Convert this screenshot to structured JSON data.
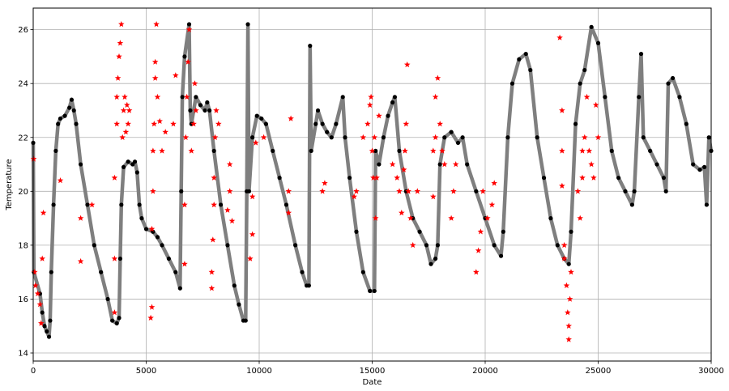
{
  "chart_data": {
    "type": "scatter",
    "xlabel": "Date",
    "ylabel": "Temperature",
    "xlim": [
      0,
      30000
    ],
    "ylim": [
      13.7,
      26.8
    ],
    "xticks": [
      0,
      5000,
      10000,
      15000,
      20000,
      25000,
      30000
    ],
    "yticks": [
      14,
      16,
      18,
      20,
      22,
      24,
      26
    ],
    "grid": true,
    "colors": {
      "line": "#7f7f7f",
      "markers": "#000000",
      "outliers": "#ff0000"
    },
    "series": [
      {
        "style": "line-with-dot-markers",
        "points": [
          [
            0,
            21.8
          ],
          [
            30,
            17.0
          ],
          [
            300,
            16.2
          ],
          [
            400,
            15.5
          ],
          [
            500,
            15.0
          ],
          [
            600,
            14.8
          ],
          [
            700,
            14.6
          ],
          [
            750,
            15.2
          ],
          [
            800,
            17.0
          ],
          [
            900,
            19.5
          ],
          [
            1000,
            21.5
          ],
          [
            1100,
            22.5
          ],
          [
            1200,
            22.7
          ],
          [
            1400,
            22.8
          ],
          [
            1600,
            23.1
          ],
          [
            1700,
            23.4
          ],
          [
            1800,
            23.0
          ],
          [
            1900,
            22.5
          ],
          [
            2100,
            21.0
          ],
          [
            2400,
            19.5
          ],
          [
            2700,
            18.0
          ],
          [
            3000,
            17.0
          ],
          [
            3300,
            16.0
          ],
          [
            3500,
            15.2
          ],
          [
            3700,
            15.1
          ],
          [
            3800,
            15.3
          ],
          [
            3850,
            17.5
          ],
          [
            3900,
            19.5
          ],
          [
            4000,
            20.9
          ],
          [
            4200,
            21.1
          ],
          [
            4400,
            21.0
          ],
          [
            4500,
            21.1
          ],
          [
            4600,
            20.7
          ],
          [
            4700,
            19.5
          ],
          [
            4800,
            19.0
          ],
          [
            5000,
            18.6
          ],
          [
            5300,
            18.5
          ],
          [
            5500,
            18.3
          ],
          [
            5700,
            18.0
          ],
          [
            6000,
            17.5
          ],
          [
            6300,
            17.0
          ],
          [
            6500,
            16.4
          ],
          [
            6550,
            20.0
          ],
          [
            6600,
            23.5
          ],
          [
            6700,
            25.0
          ],
          [
            6900,
            26.2
          ],
          [
            6950,
            23.0
          ],
          [
            7000,
            22.5
          ],
          [
            7200,
            23.5
          ],
          [
            7400,
            23.2
          ],
          [
            7600,
            23.0
          ],
          [
            7700,
            23.3
          ],
          [
            7800,
            23.0
          ],
          [
            8000,
            21.5
          ],
          [
            8300,
            19.5
          ],
          [
            8600,
            18.0
          ],
          [
            8900,
            16.5
          ],
          [
            9100,
            15.8
          ],
          [
            9300,
            15.2
          ],
          [
            9400,
            15.2
          ],
          [
            9450,
            20.0
          ],
          [
            9500,
            26.2
          ],
          [
            9550,
            20.0
          ],
          [
            9700,
            22.0
          ],
          [
            9900,
            22.8
          ],
          [
            10100,
            22.7
          ],
          [
            10300,
            22.5
          ],
          [
            10600,
            21.5
          ],
          [
            10900,
            20.5
          ],
          [
            11200,
            19.5
          ],
          [
            11600,
            18.0
          ],
          [
            11900,
            17.0
          ],
          [
            12100,
            16.5
          ],
          [
            12200,
            16.5
          ],
          [
            12250,
            25.4
          ],
          [
            12300,
            21.5
          ],
          [
            12500,
            22.5
          ],
          [
            12600,
            23.0
          ],
          [
            12800,
            22.5
          ],
          [
            13000,
            22.2
          ],
          [
            13200,
            22.0
          ],
          [
            13400,
            22.5
          ],
          [
            13700,
            23.5
          ],
          [
            13800,
            22.0
          ],
          [
            14000,
            20.5
          ],
          [
            14300,
            18.5
          ],
          [
            14600,
            17.0
          ],
          [
            14900,
            16.3
          ],
          [
            15100,
            16.3
          ],
          [
            15150,
            21.5
          ],
          [
            15300,
            21.0
          ],
          [
            15500,
            22.0
          ],
          [
            15700,
            22.8
          ],
          [
            15900,
            23.3
          ],
          [
            16000,
            23.5
          ],
          [
            16200,
            21.5
          ],
          [
            16500,
            20.0
          ],
          [
            16800,
            19.0
          ],
          [
            17100,
            18.5
          ],
          [
            17400,
            18.0
          ],
          [
            17600,
            17.3
          ],
          [
            17800,
            17.5
          ],
          [
            17900,
            18.0
          ],
          [
            18000,
            21.0
          ],
          [
            18200,
            22.0
          ],
          [
            18500,
            22.2
          ],
          [
            18800,
            21.8
          ],
          [
            19000,
            22.0
          ],
          [
            19200,
            21.0
          ],
          [
            19600,
            20.0
          ],
          [
            20000,
            19.0
          ],
          [
            20400,
            18.0
          ],
          [
            20700,
            17.6
          ],
          [
            20800,
            18.5
          ],
          [
            21000,
            22.0
          ],
          [
            21200,
            24.0
          ],
          [
            21500,
            24.9
          ],
          [
            21800,
            25.1
          ],
          [
            22000,
            24.5
          ],
          [
            22300,
            22.0
          ],
          [
            22600,
            20.5
          ],
          [
            22900,
            19.0
          ],
          [
            23200,
            18.0
          ],
          [
            23500,
            17.5
          ],
          [
            23700,
            17.3
          ],
          [
            23800,
            18.5
          ],
          [
            24000,
            22.5
          ],
          [
            24200,
            24.0
          ],
          [
            24400,
            24.5
          ],
          [
            24700,
            26.1
          ],
          [
            25000,
            25.5
          ],
          [
            25300,
            23.5
          ],
          [
            25600,
            21.5
          ],
          [
            25900,
            20.5
          ],
          [
            26200,
            20.0
          ],
          [
            26500,
            19.5
          ],
          [
            26600,
            20.0
          ],
          [
            26800,
            23.5
          ],
          [
            26900,
            25.1
          ],
          [
            27000,
            22.0
          ],
          [
            27300,
            21.5
          ],
          [
            27600,
            21.0
          ],
          [
            27900,
            20.5
          ],
          [
            28000,
            20.0
          ],
          [
            28100,
            24.0
          ],
          [
            28300,
            24.2
          ],
          [
            28600,
            23.5
          ],
          [
            28900,
            22.5
          ],
          [
            29200,
            21.0
          ],
          [
            29500,
            20.8
          ],
          [
            29700,
            20.9
          ],
          [
            29800,
            19.5
          ],
          [
            29900,
            22.0
          ],
          [
            30000,
            21.5
          ]
        ]
      },
      {
        "style": "red-star",
        "points": [
          [
            20,
            21.2
          ],
          [
            60,
            17.0
          ],
          [
            100,
            16.5
          ],
          [
            200,
            16.2
          ],
          [
            300,
            15.8
          ],
          [
            350,
            15.1
          ],
          [
            400,
            17.5
          ],
          [
            450,
            19.2
          ],
          [
            1200,
            20.4
          ],
          [
            2100,
            17.4
          ],
          [
            2100,
            19.0
          ],
          [
            2600,
            19.5
          ],
          [
            3600,
            15.5
          ],
          [
            3600,
            17.5
          ],
          [
            3600,
            20.5
          ],
          [
            3700,
            22.5
          ],
          [
            3700,
            23.5
          ],
          [
            3750,
            24.2
          ],
          [
            3800,
            25.0
          ],
          [
            3850,
            25.5
          ],
          [
            3900,
            26.2
          ],
          [
            3950,
            22.0
          ],
          [
            4000,
            23.0
          ],
          [
            4050,
            23.5
          ],
          [
            4100,
            22.2
          ],
          [
            4150,
            23.2
          ],
          [
            4200,
            22.5
          ],
          [
            4250,
            23.0
          ],
          [
            5200,
            15.3
          ],
          [
            5250,
            15.7
          ],
          [
            5250,
            18.6
          ],
          [
            5300,
            20.0
          ],
          [
            5300,
            21.5
          ],
          [
            5350,
            22.5
          ],
          [
            5400,
            24.2
          ],
          [
            5400,
            24.8
          ],
          [
            5450,
            26.2
          ],
          [
            5500,
            23.5
          ],
          [
            5600,
            22.6
          ],
          [
            5700,
            21.5
          ],
          [
            5850,
            22.2
          ],
          [
            6200,
            22.5
          ],
          [
            6300,
            24.3
          ],
          [
            6700,
            17.3
          ],
          [
            6700,
            19.5
          ],
          [
            6750,
            22.0
          ],
          [
            6800,
            23.5
          ],
          [
            6850,
            24.8
          ],
          [
            6900,
            26.0
          ],
          [
            7000,
            21.5
          ],
          [
            7100,
            22.5
          ],
          [
            7150,
            24.0
          ],
          [
            7200,
            23.0
          ],
          [
            7900,
            16.4
          ],
          [
            7900,
            17.0
          ],
          [
            7950,
            18.2
          ],
          [
            8000,
            19.5
          ],
          [
            8000,
            20.5
          ],
          [
            8050,
            22.0
          ],
          [
            8100,
            23.0
          ],
          [
            8200,
            22.5
          ],
          [
            8600,
            19.3
          ],
          [
            8700,
            20.0
          ],
          [
            8700,
            21.0
          ],
          [
            8800,
            18.9
          ],
          [
            9600,
            17.5
          ],
          [
            9700,
            18.4
          ],
          [
            9700,
            19.8
          ],
          [
            9850,
            21.8
          ],
          [
            10200,
            22.0
          ],
          [
            11300,
            19.2
          ],
          [
            11300,
            20.0
          ],
          [
            11400,
            22.7
          ],
          [
            12800,
            20.0
          ],
          [
            12900,
            20.3
          ],
          [
            14200,
            19.8
          ],
          [
            14300,
            20.0
          ],
          [
            14600,
            22.0
          ],
          [
            14800,
            22.5
          ],
          [
            14900,
            23.2
          ],
          [
            14950,
            23.5
          ],
          [
            15000,
            21.5
          ],
          [
            15050,
            20.5
          ],
          [
            15100,
            22.0
          ],
          [
            15150,
            19.0
          ],
          [
            15200,
            20.5
          ],
          [
            15300,
            22.8
          ],
          [
            15900,
            21.0
          ],
          [
            16100,
            20.5
          ],
          [
            16200,
            20.0
          ],
          [
            16300,
            19.2
          ],
          [
            16400,
            20.8
          ],
          [
            16450,
            21.5
          ],
          [
            16500,
            22.5
          ],
          [
            16550,
            24.7
          ],
          [
            16600,
            20.0
          ],
          [
            16700,
            19.0
          ],
          [
            16800,
            18.0
          ],
          [
            17000,
            20.0
          ],
          [
            17700,
            19.8
          ],
          [
            17700,
            21.5
          ],
          [
            17800,
            22.0
          ],
          [
            17800,
            23.5
          ],
          [
            17900,
            24.2
          ],
          [
            18000,
            22.5
          ],
          [
            18100,
            21.5
          ],
          [
            18200,
            21.0
          ],
          [
            18500,
            19.0
          ],
          [
            18600,
            20.0
          ],
          [
            18700,
            21.0
          ],
          [
            19600,
            17.0
          ],
          [
            19700,
            17.8
          ],
          [
            19800,
            18.5
          ],
          [
            19900,
            20.0
          ],
          [
            20100,
            19.0
          ],
          [
            20300,
            19.5
          ],
          [
            20400,
            20.3
          ],
          [
            23300,
            25.7
          ],
          [
            23400,
            23.0
          ],
          [
            23400,
            21.5
          ],
          [
            23400,
            20.2
          ],
          [
            23500,
            18.0
          ],
          [
            23500,
            17.5
          ],
          [
            23600,
            16.5
          ],
          [
            23650,
            15.5
          ],
          [
            23700,
            14.5
          ],
          [
            23700,
            15.0
          ],
          [
            23750,
            16.0
          ],
          [
            23800,
            17.0
          ],
          [
            24100,
            20.0
          ],
          [
            24200,
            19.0
          ],
          [
            24300,
            20.5
          ],
          [
            24300,
            21.5
          ],
          [
            24400,
            22.0
          ],
          [
            24500,
            23.5
          ],
          [
            24600,
            21.5
          ],
          [
            24700,
            21.0
          ],
          [
            24800,
            20.5
          ],
          [
            24900,
            23.2
          ],
          [
            25000,
            22.0
          ]
        ]
      }
    ]
  }
}
